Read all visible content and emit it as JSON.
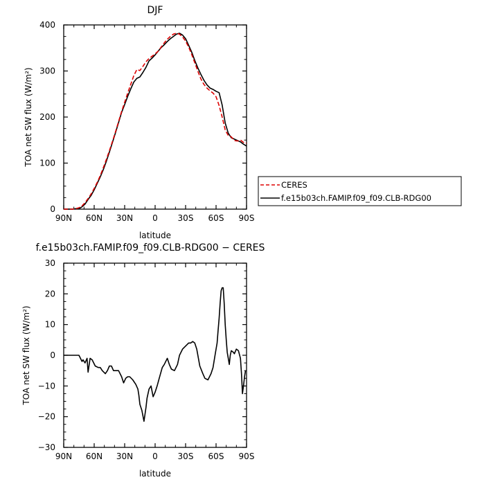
{
  "chart_data": [
    {
      "type": "line",
      "title": "DJF",
      "xlabel": "latitude",
      "ylabel": "TOA net SW flux (W/m²)",
      "xlim": [
        90,
        -90
      ],
      "ylim": [
        0,
        400
      ],
      "x_ticks": [
        "90N",
        "60N",
        "30N",
        "0",
        "30S",
        "60S",
        "90S"
      ],
      "y_ticks": [
        "0",
        "100",
        "200",
        "300",
        "400"
      ],
      "legend_position": "right",
      "series": [
        {
          "name": "CERES",
          "color": "#dd0000",
          "dash": "dashed",
          "x": [
            90,
            87,
            84,
            81,
            78,
            75,
            72,
            69,
            66,
            63,
            60,
            57,
            54,
            51,
            48,
            45,
            42,
            39,
            36,
            33,
            30,
            27,
            24,
            21,
            18,
            15,
            12,
            9,
            6,
            3,
            0,
            -3,
            -6,
            -9,
            -12,
            -15,
            -18,
            -21,
            -24,
            -27,
            -30,
            -33,
            -36,
            -39,
            -42,
            -45,
            -48,
            -51,
            -54,
            -57,
            -60,
            -63,
            -66,
            -69,
            -72,
            -75,
            -78,
            -81,
            -84,
            -87,
            -90
          ],
          "y": [
            0,
            0,
            0,
            0,
            1,
            3,
            7,
            14,
            23,
            33,
            45,
            58,
            73,
            90,
            108,
            127,
            147,
            168,
            190,
            212,
            232,
            252,
            271,
            290,
            303,
            301,
            310,
            320,
            327,
            332,
            337,
            343,
            352,
            361,
            369,
            375,
            380,
            382,
            380,
            374,
            365,
            352,
            336,
            318,
            300,
            283,
            271,
            263,
            257,
            252,
            244,
            225,
            200,
            172,
            160,
            157,
            149,
            148,
            150,
            145,
            143
          ]
        },
        {
          "name": "f.e15b03ch.FAMIP.f09_f09.CLB-RDG00",
          "color": "#000000",
          "dash": "solid",
          "x": [
            90,
            87,
            84,
            81,
            78,
            75,
            72,
            69,
            66,
            63,
            60,
            57,
            54,
            51,
            48,
            45,
            42,
            39,
            36,
            33,
            30,
            27,
            24,
            21,
            18,
            15,
            12,
            9,
            6,
            3,
            0,
            -3,
            -6,
            -9,
            -12,
            -15,
            -18,
            -21,
            -24,
            -27,
            -30,
            -33,
            -36,
            -39,
            -42,
            -45,
            -48,
            -51,
            -54,
            -57,
            -60,
            -63,
            -66,
            -69,
            -72,
            -75,
            -78,
            -81,
            -84,
            -87,
            -90
          ],
          "y": [
            0,
            0,
            0,
            0,
            1,
            1,
            5,
            11,
            21,
            30,
            42,
            56,
            70,
            86,
            104,
            124,
            145,
            166,
            188,
            210,
            227,
            245,
            261,
            276,
            284,
            287,
            297,
            308,
            322,
            328,
            335,
            343,
            351,
            357,
            364,
            370,
            375,
            380,
            382,
            378,
            370,
            356,
            341,
            323,
            307,
            293,
            280,
            270,
            263,
            260,
            256,
            253,
            226,
            187,
            165,
            155,
            152,
            149,
            146,
            141,
            137
          ]
        }
      ]
    },
    {
      "type": "line",
      "title": "f.e15b03ch.FAMIP.f09_f09.CLB-RDG00 − CERES",
      "xlabel": "latitude",
      "ylabel": "TOA net SW flux (W/m²)",
      "xlim": [
        90,
        -90
      ],
      "ylim": [
        -30,
        30
      ],
      "x_ticks": [
        "90N",
        "60N",
        "30N",
        "0",
        "30S",
        "60S",
        "90S"
      ],
      "y_ticks": [
        "−30",
        "−20",
        "−10",
        "0",
        "10",
        "20",
        "30"
      ],
      "series": [
        {
          "color": "#000000",
          "x": [
            90,
            87,
            84,
            81,
            78,
            75,
            72,
            71,
            69,
            67,
            66,
            64,
            62,
            59,
            56,
            54,
            52,
            49,
            47,
            45,
            43,
            41,
            39,
            36,
            33,
            31,
            29,
            27,
            25,
            22,
            19,
            17,
            16,
            15,
            13,
            11,
            9,
            8,
            6,
            4,
            2,
            0,
            -2,
            -4,
            -7,
            -9,
            -12,
            -14,
            -16,
            -19,
            -22,
            -24,
            -27,
            -30,
            -33,
            -35,
            -37,
            -39,
            -41,
            -44,
            -47,
            -49,
            -52,
            -55,
            -57,
            -59,
            -61,
            -62,
            -63,
            -64,
            -65,
            -66,
            -67,
            -68,
            -69,
            -70,
            -71,
            -72,
            -73,
            -74,
            -75,
            -77,
            -78,
            -80,
            -82,
            -84,
            -85,
            -86,
            -87,
            -88,
            -89
          ],
          "y": [
            0,
            0,
            0,
            0,
            0,
            0,
            -2,
            -1.5,
            -2.5,
            -1,
            -5.5,
            -1,
            -1.5,
            -3.5,
            -4,
            -4,
            -5,
            -6,
            -5,
            -3.5,
            -3.5,
            -5,
            -5,
            -5,
            -7,
            -9,
            -7.5,
            -7,
            -7,
            -8,
            -9.5,
            -11,
            -13,
            -16,
            -18,
            -21.5,
            -17,
            -14,
            -11,
            -10,
            -13.5,
            -12,
            -10,
            -7.5,
            -4,
            -3,
            -1,
            -3,
            -4.5,
            -5,
            -3,
            0,
            2,
            3,
            4,
            4,
            4.5,
            4,
            2,
            -3.5,
            -6,
            -7.5,
            -8,
            -6,
            -4,
            0,
            4,
            8,
            12,
            17,
            21,
            22,
            22,
            17,
            10,
            5,
            1,
            -1,
            -3,
            0,
            1.5,
            1,
            0.5,
            2,
            1.5,
            -1,
            -6,
            -12.5,
            -10,
            -7,
            -5
          ]
        }
      ]
    }
  ]
}
